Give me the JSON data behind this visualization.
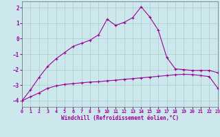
{
  "xlabel": "Windchill (Refroidissement éolien,°C)",
  "background_color": "#cce8ec",
  "line_color": "#990099",
  "grid_color": "#aacccc",
  "x_ticks": [
    0,
    1,
    2,
    3,
    4,
    5,
    6,
    7,
    8,
    9,
    10,
    11,
    12,
    13,
    14,
    15,
    16,
    17,
    18,
    19,
    20,
    21,
    22,
    23
  ],
  "y_ticks": [
    -4,
    -3,
    -2,
    -1,
    0,
    1,
    2
  ],
  "xlim": [
    0,
    23
  ],
  "ylim": [
    -4.4,
    2.4
  ],
  "series1_x": [
    0,
    1,
    2,
    3,
    4,
    5,
    6,
    7,
    8,
    9,
    10,
    11,
    12,
    13,
    14,
    15,
    16,
    17,
    18,
    19,
    20,
    21,
    22,
    23
  ],
  "series1_y": [
    -4.0,
    -3.3,
    -2.5,
    -1.8,
    -1.3,
    -0.9,
    -0.5,
    -0.3,
    -0.1,
    0.25,
    1.25,
    0.85,
    1.05,
    1.35,
    2.05,
    1.4,
    0.55,
    -1.2,
    -1.95,
    -2.0,
    -2.05,
    -2.05,
    -2.05,
    -2.2
  ],
  "series2_x": [
    0,
    1,
    2,
    3,
    4,
    5,
    6,
    7,
    8,
    9,
    10,
    11,
    12,
    13,
    14,
    15,
    16,
    17,
    18,
    19,
    20,
    21,
    22,
    23
  ],
  "series2_y": [
    -4.0,
    -3.75,
    -3.5,
    -3.2,
    -3.05,
    -2.95,
    -2.9,
    -2.85,
    -2.8,
    -2.78,
    -2.72,
    -2.68,
    -2.62,
    -2.58,
    -2.53,
    -2.48,
    -2.43,
    -2.38,
    -2.33,
    -2.3,
    -2.32,
    -2.38,
    -2.45,
    -3.2
  ]
}
